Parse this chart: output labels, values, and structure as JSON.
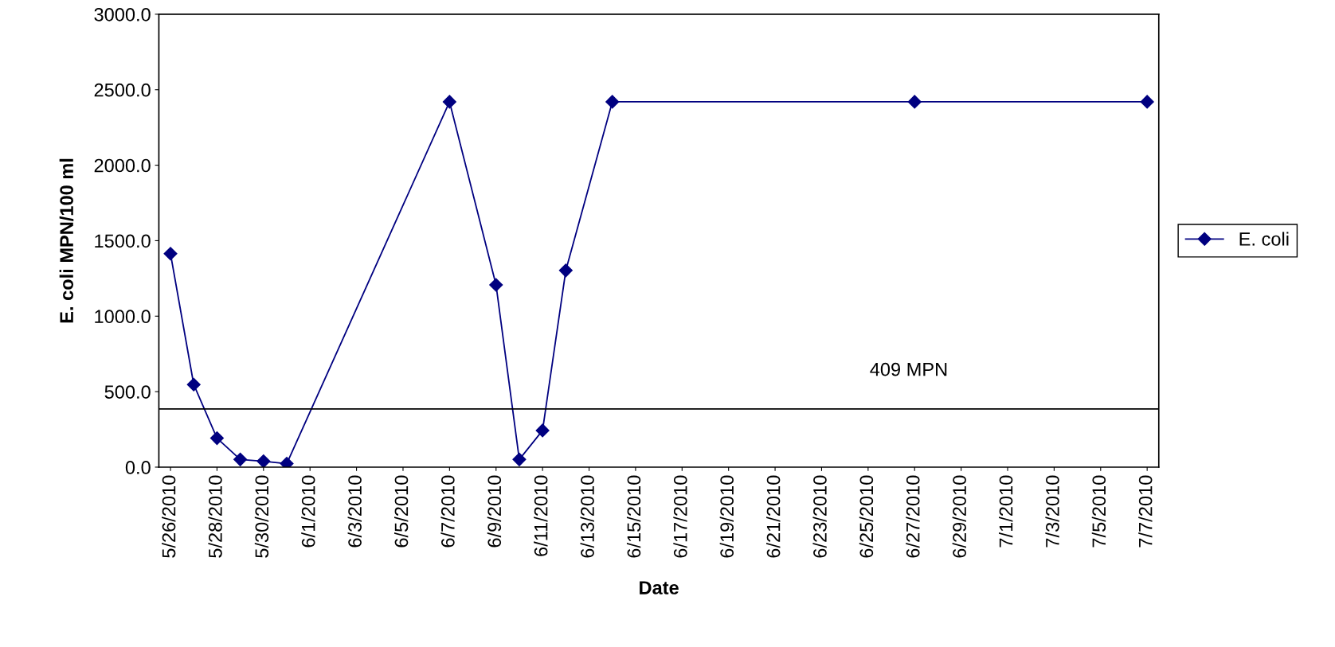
{
  "chart_data": {
    "type": "line",
    "xlabel": "Date",
    "ylabel": "E. coli MPN/100 ml",
    "x": [
      "2010-05-26",
      "2010-05-27",
      "2010-05-28",
      "2010-05-29",
      "2010-05-30",
      "2010-05-31",
      "2010-06-07",
      "2010-06-09",
      "2010-06-10",
      "2010-06-11",
      "2010-06-12",
      "2010-06-14",
      "2010-06-27",
      "2010-07-07"
    ],
    "series": [
      {
        "name": "E. coli",
        "color": "#000080",
        "values": [
          1414,
          547,
          192,
          51,
          39,
          23,
          2420,
          1207,
          51,
          243,
          1303,
          2420,
          2420,
          2420
        ]
      }
    ],
    "xlim": [
      "2010-05-25T12:00",
      "2010-07-07T12:00"
    ],
    "xticks": [
      {
        "value": "2010-05-26",
        "label": "5/26/2010"
      },
      {
        "value": "2010-05-28",
        "label": "5/28/2010"
      },
      {
        "value": "2010-05-30",
        "label": "5/30/2010"
      },
      {
        "value": "2010-06-01",
        "label": "6/1/2010"
      },
      {
        "value": "2010-06-03",
        "label": "6/3/2010"
      },
      {
        "value": "2010-06-05",
        "label": "6/5/2010"
      },
      {
        "value": "2010-06-07",
        "label": "6/7/2010"
      },
      {
        "value": "2010-06-09",
        "label": "6/9/2010"
      },
      {
        "value": "2010-06-11",
        "label": "6/11/2010"
      },
      {
        "value": "2010-06-13",
        "label": "6/13/2010"
      },
      {
        "value": "2010-06-15",
        "label": "6/15/2010"
      },
      {
        "value": "2010-06-17",
        "label": "6/17/2010"
      },
      {
        "value": "2010-06-19",
        "label": "6/19/2010"
      },
      {
        "value": "2010-06-21",
        "label": "6/21/2010"
      },
      {
        "value": "2010-06-23",
        "label": "6/23/2010"
      },
      {
        "value": "2010-06-25",
        "label": "6/25/2010"
      },
      {
        "value": "2010-06-27",
        "label": "6/27/2010"
      },
      {
        "value": "2010-06-29",
        "label": "6/29/2010"
      },
      {
        "value": "2010-07-01",
        "label": "7/1/2010"
      },
      {
        "value": "2010-07-03",
        "label": "7/3/2010"
      },
      {
        "value": "2010-07-05",
        "label": "7/5/2010"
      },
      {
        "value": "2010-07-07",
        "label": "7/7/2010"
      }
    ],
    "ylim": [
      0,
      3000
    ],
    "yticks": [
      {
        "value": 0,
        "label": "0.0"
      },
      {
        "value": 500,
        "label": "500.0"
      },
      {
        "value": 1000,
        "label": "1000.0"
      },
      {
        "value": 1500,
        "label": "1500.0"
      },
      {
        "value": 2000,
        "label": "2000.0"
      },
      {
        "value": 2500,
        "label": "2500.0"
      },
      {
        "value": 3000,
        "label": "3000.0"
      }
    ],
    "ref_lines": [
      {
        "axis": "y",
        "value": 385,
        "label": "409 MPN",
        "color": "#000000"
      }
    ],
    "marker": "diamond",
    "line_style": "solid",
    "grid": false,
    "legend": "right"
  }
}
